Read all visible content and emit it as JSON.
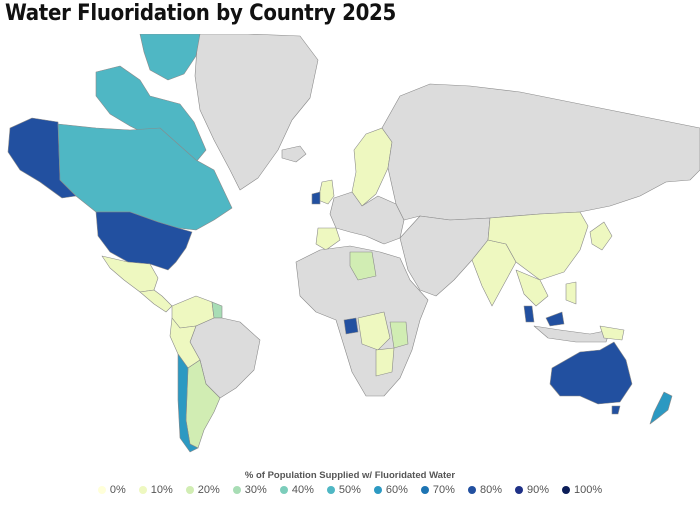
{
  "title": "Water Fluoridation by Country 2025",
  "legend": {
    "title": "% of Population Supplied w/ Fluoridated Water",
    "items": [
      {
        "label": "0%",
        "color": "#ffffd9"
      },
      {
        "label": "10%",
        "color": "#eef8c0"
      },
      {
        "label": "20%",
        "color": "#d1edb3"
      },
      {
        "label": "30%",
        "color": "#a8ddb5"
      },
      {
        "label": "40%",
        "color": "#7ccdbb"
      },
      {
        "label": "50%",
        "color": "#4fb7c4"
      },
      {
        "label": "60%",
        "color": "#2c99c2"
      },
      {
        "label": "70%",
        "color": "#1d74b3"
      },
      {
        "label": "80%",
        "color": "#2250a0"
      },
      {
        "label": "90%",
        "color": "#1f3187"
      },
      {
        "label": "100%",
        "color": "#0b1d58"
      }
    ]
  },
  "colors": {
    "no_data": "#dcdcdc",
    "border": "#8a8a8a",
    "background": "#ffffff"
  },
  "regions": {
    "greenland": "no_data",
    "alaska": "80%",
    "canada": "50%",
    "usa": "80%",
    "mexico": "10%",
    "central_america": "10%",
    "colombia_venezuela": "10%",
    "guyana": "30%",
    "brazil": "no_data",
    "peru_bolivia": "10%",
    "argentina": "20%",
    "chile": "60%",
    "iceland": "no_data",
    "ireland": "80%",
    "uk": "10%",
    "europe": "no_data",
    "scandinavia": "10%",
    "iberia": "10%",
    "russia_asia": "no_data",
    "africa": "no_data",
    "libya": "20%",
    "gabon": "80%",
    "congo": "10%",
    "kenya_region": "20%",
    "tanzania_malawi": "10%",
    "middle_east": "no_data",
    "india": "10%",
    "china": "10%",
    "korea_japan": "10%",
    "southeast_asia": "10%",
    "malaysia": "80%",
    "indonesia": "no_data",
    "png": "10%",
    "australia": "80%",
    "tasmania": "80%",
    "new_zealand": "60%"
  }
}
